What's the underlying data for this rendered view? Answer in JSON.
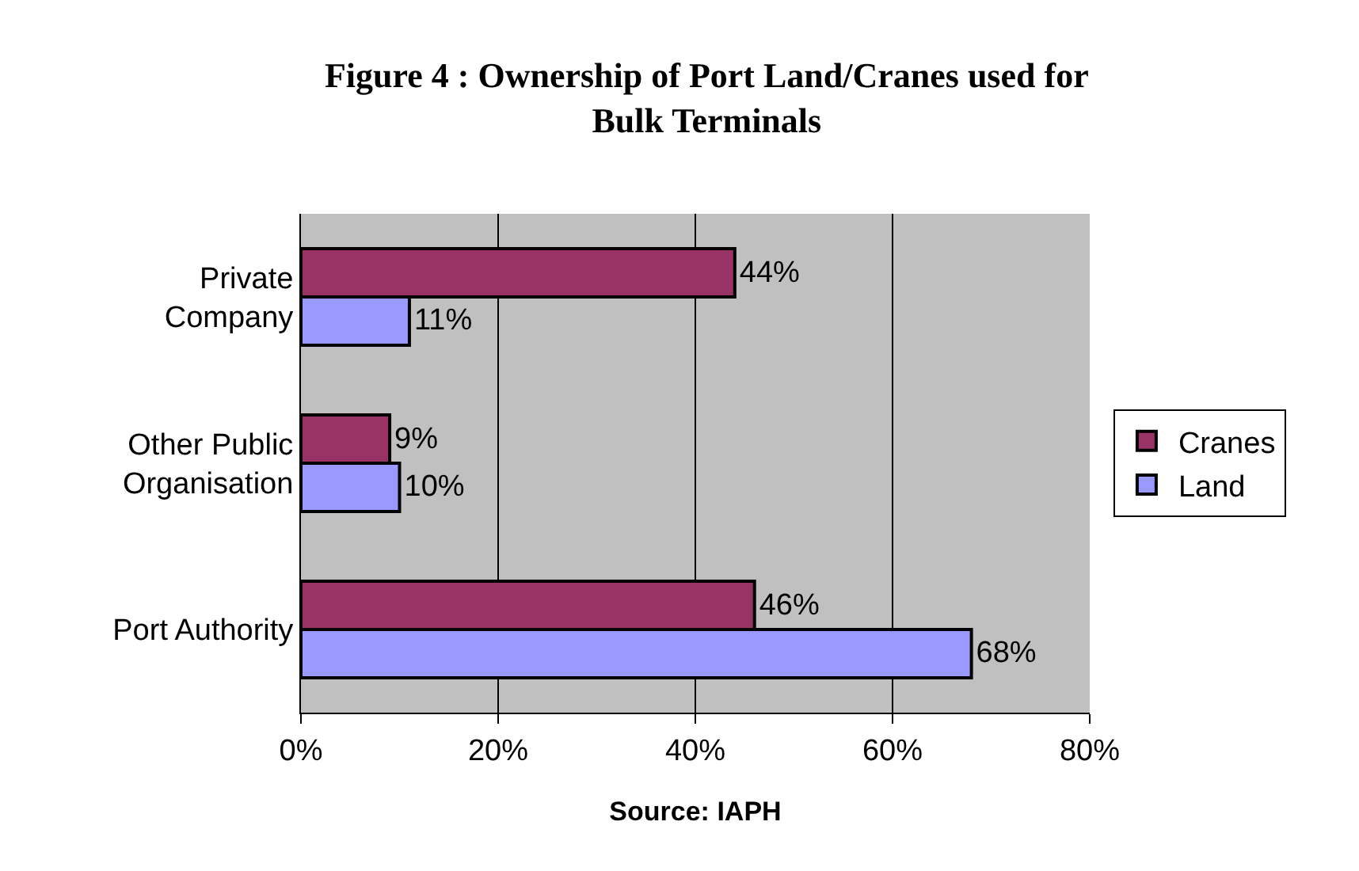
{
  "chart_data": {
    "type": "bar",
    "orientation": "horizontal",
    "title": "Figure 4 : Ownership of Port Land/Cranes used for Bulk Terminals",
    "xlabel": "Source: IAPH",
    "categories": [
      "Private Company",
      "Other Public Organisation",
      "Port Authority"
    ],
    "series": [
      {
        "name": "Cranes",
        "color": "#993366",
        "values": [
          44,
          9,
          46
        ],
        "value_labels": [
          "44%",
          "9%",
          "46%"
        ]
      },
      {
        "name": "Land",
        "color": "#9999ff",
        "values": [
          11,
          10,
          68
        ],
        "value_labels": [
          "11%",
          "10%",
          "68%"
        ]
      }
    ],
    "xlim": [
      0,
      80
    ],
    "xticks": [
      {
        "value": 0,
        "label": "0%"
      },
      {
        "value": 20,
        "label": "20%"
      },
      {
        "value": 40,
        "label": "40%"
      },
      {
        "value": 60,
        "label": "60%"
      },
      {
        "value": 80,
        "label": "80%"
      }
    ],
    "grid": "x",
    "legend": "right"
  }
}
